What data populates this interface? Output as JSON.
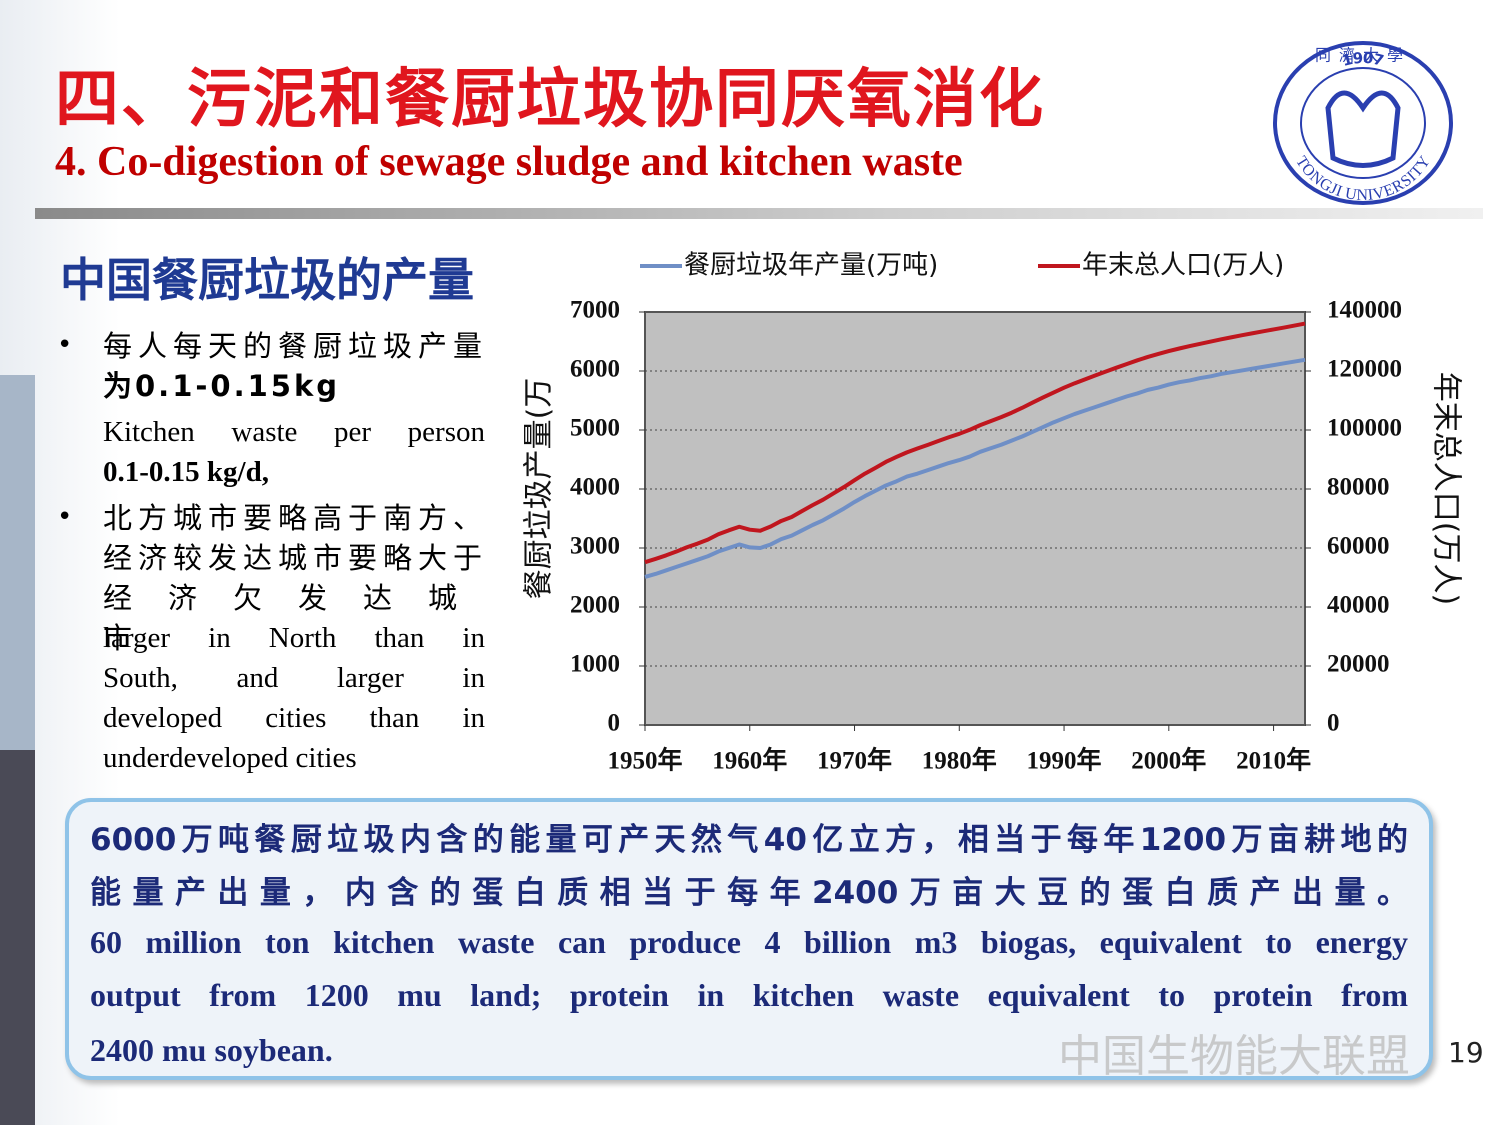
{
  "slide": {
    "title": "四、污泥和餐厨垃圾协同厌氧消化",
    "subtitle": "4. Co-digestion of sewage sludge and kitchen waste",
    "logo": {
      "year": "1907",
      "name": "TONGJI UNIVERSITY",
      "chinese": "同濟大學"
    },
    "section_title": "中国餐厨垃圾的产量",
    "bullets": [
      {
        "cn": [
          "每人每天的餐厨垃圾产量",
          "为0.1-0.15kg"
        ],
        "en": [
          "Kitchen waste per person",
          "0.1-0.15 kg/d,"
        ]
      },
      {
        "cn": [
          "北方城市要略高于南方、",
          "经济较发达城市要略大于",
          "经济欠发达城市"
        ],
        "en": [
          "larger in North than in",
          "South, and larger in",
          "developed cities than in",
          "underdeveloped cities"
        ]
      }
    ],
    "note": [
      "6000万吨餐厨垃圾内含的能量可产天然气40亿立方，相当于每年1200万亩耕地的",
      "能量产出量，内含的蛋白质相当于每年2400万亩大豆的蛋白质产出量。",
      "60 million ton kitchen waste can produce 4 billion m3 biogas, equivalent to energy",
      "output from 1200 mu land; protein in kitchen waste equivalent to protein from",
      "2400 mu soybean."
    ],
    "watermark": "中国生物能大联盟",
    "page_number": "19"
  },
  "chart_data": {
    "type": "line",
    "y_label": "餐厨垃圾产量(万",
    "y2_label": "年末总人口(万人)",
    "x": [
      1950,
      1951,
      1952,
      1953,
      1954,
      1955,
      1956,
      1957,
      1958,
      1959,
      1960,
      1961,
      1962,
      1963,
      1964,
      1965,
      1966,
      1967,
      1968,
      1969,
      1970,
      1971,
      1972,
      1973,
      1974,
      1975,
      1976,
      1977,
      1978,
      1979,
      1980,
      1981,
      1982,
      1983,
      1984,
      1985,
      1986,
      1987,
      1988,
      1989,
      1990,
      1991,
      1992,
      1993,
      1994,
      1995,
      1996,
      1997,
      1998,
      1999,
      2000,
      2001,
      2002,
      2003,
      2004,
      2005,
      2006,
      2007,
      2008,
      2009,
      2010,
      2011,
      2012,
      2013
    ],
    "series": [
      {
        "name": "餐厨垃圾年产量(万吨)",
        "color": "#6f8fc6",
        "values": [
          2510,
          2560,
          2620,
          2680,
          2740,
          2800,
          2860,
          2940,
          3000,
          3060,
          3010,
          3000,
          3060,
          3150,
          3210,
          3300,
          3390,
          3470,
          3570,
          3670,
          3780,
          3880,
          3970,
          4060,
          4130,
          4210,
          4260,
          4320,
          4380,
          4440,
          4490,
          4550,
          4630,
          4690,
          4750,
          4820,
          4890,
          4970,
          5050,
          5130,
          5200,
          5270,
          5330,
          5390,
          5450,
          5510,
          5570,
          5620,
          5680,
          5720,
          5770,
          5810,
          5840,
          5880,
          5910,
          5950,
          5980,
          6010,
          6040,
          6070,
          6100,
          6130,
          6160,
          6190
        ]
      },
      {
        "name": "年末总人口(万人)",
        "color": "#c0161e",
        "axis": "y2",
        "values": [
          55196,
          56300,
          57482,
          58796,
          60266,
          61465,
          62828,
          64653,
          65994,
          67207,
          66207,
          65859,
          67295,
          69172,
          70499,
          72538,
          74542,
          76368,
          78534,
          80671,
          82992,
          85229,
          87177,
          89211,
          90859,
          92420,
          93717,
          94974,
          96259,
          97542,
          98705,
          100072,
          101654,
          103008,
          104357,
          105851,
          107507,
          109300,
          111026,
          112704,
          114333,
          115823,
          117171,
          118517,
          119850,
          121121,
          122389,
          123626,
          124761,
          125786,
          126743,
          127627,
          128453,
          129227,
          129988,
          130756,
          131448,
          132129,
          132802,
          133450,
          134091,
          134735,
          135404,
          136072
        ]
      }
    ],
    "xlim": [
      1950,
      2013
    ],
    "xticks": [
      {
        "value": 1950,
        "label": "1950年"
      },
      {
        "value": 1960,
        "label": "1960年"
      },
      {
        "value": 1970,
        "label": "1970年"
      },
      {
        "value": 1980,
        "label": "1980年"
      },
      {
        "value": 1990,
        "label": "1990年"
      },
      {
        "value": 2000,
        "label": "2000年"
      },
      {
        "value": 2010,
        "label": "2010年"
      }
    ],
    "ylim": [
      0,
      7000
    ],
    "yticks": [
      0,
      1000,
      2000,
      3000,
      4000,
      5000,
      6000,
      7000
    ],
    "y2lim": [
      0,
      140000
    ],
    "y2ticks": [
      0,
      20000,
      40000,
      60000,
      80000,
      100000,
      120000,
      140000
    ],
    "grid": true,
    "legend": "top"
  }
}
